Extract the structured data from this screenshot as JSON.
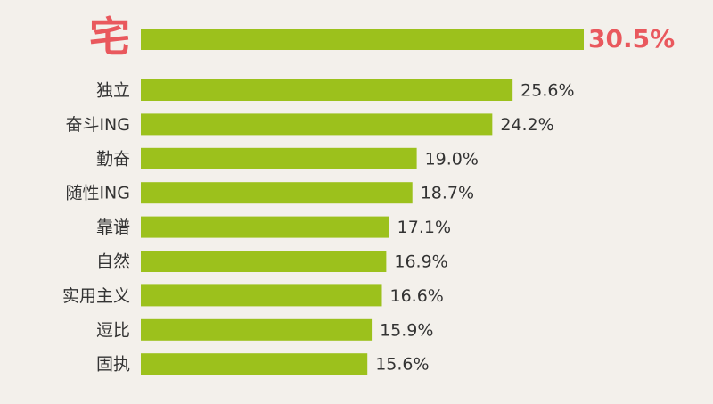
{
  "chart_data": {
    "type": "bar",
    "orientation": "horizontal",
    "categories": [
      "宅",
      "独立",
      "奋斗ING",
      "勤奋",
      "随性ING",
      "靠谱",
      "自然",
      "实用主义",
      "逗比",
      "固执"
    ],
    "values": [
      30.5,
      25.6,
      24.2,
      19.0,
      18.7,
      17.1,
      16.9,
      16.6,
      15.9,
      15.6
    ],
    "value_labels": [
      "30.5%",
      "25.6%",
      "24.2%",
      "19.0%",
      "18.7%",
      "17.1%",
      "16.9%",
      "16.6%",
      "15.9%",
      "15.6%"
    ],
    "color": "#9cc11c",
    "highlight_color": "#e9585d"
  }
}
